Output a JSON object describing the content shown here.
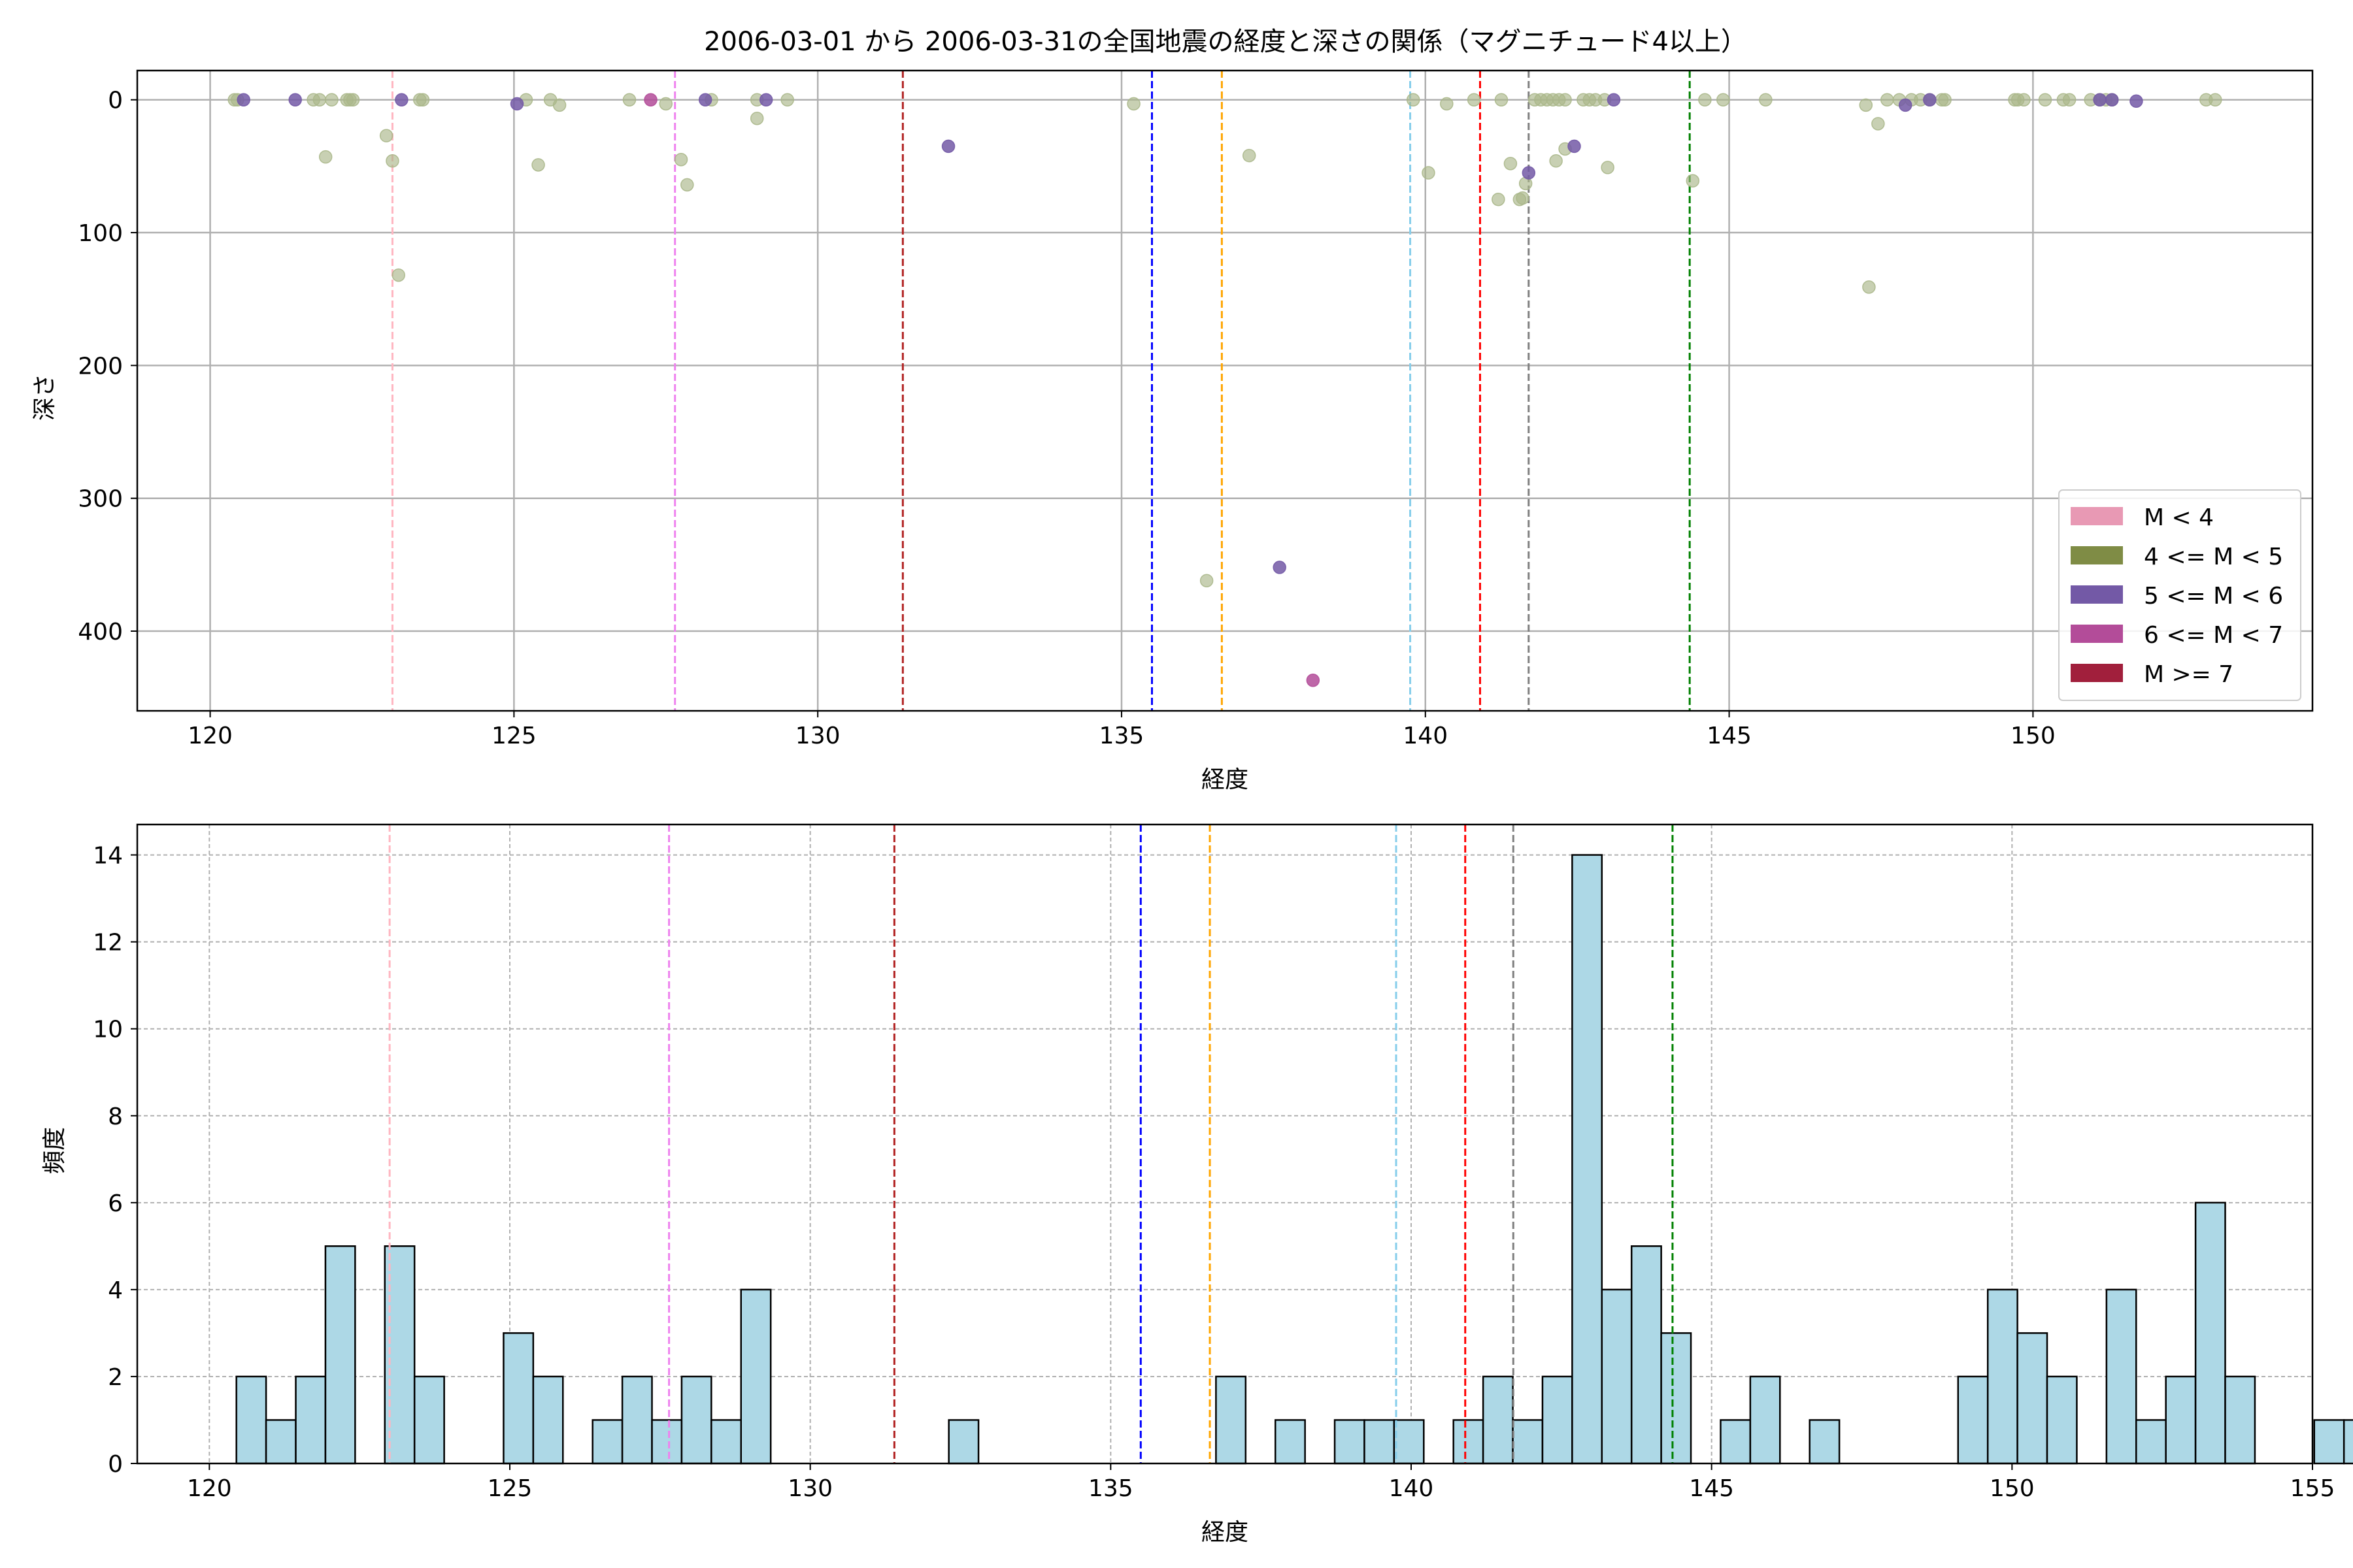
{
  "chart_data": [
    {
      "type": "scatter",
      "title": "2006-03-01 から 2006-03-31の全国地震の経度と深さの関係（マグニチュード4以上）",
      "xlabel": "経度",
      "ylabel": "深さ",
      "xlim": [
        118.8,
        154.6
      ],
      "ylim": [
        460,
        -22
      ],
      "y_inverted": true,
      "xticks": [
        120,
        125,
        130,
        135,
        140,
        145,
        150
      ],
      "yticks": [
        0,
        100,
        200,
        300,
        400
      ],
      "grid": true,
      "legend_position": "lower-right",
      "legend": [
        {
          "label": "M < 4",
          "color": "#e899b4"
        },
        {
          "label": "4 <= M < 5",
          "color": "#7f8c45"
        },
        {
          "label": "5 <= M < 6",
          "color": "#7359a6"
        },
        {
          "label": "6 <= M < 7",
          "color": "#b34c99"
        },
        {
          "label": "M >= 7",
          "color": "#a11f3c"
        }
      ],
      "vlines": [
        {
          "x": 123.0,
          "color": "#ffb6c1"
        },
        {
          "x": 127.65,
          "color": "#ee82ee"
        },
        {
          "x": 131.4,
          "color": "#b22222"
        },
        {
          "x": 135.5,
          "color": "#0000ff"
        },
        {
          "x": 136.65,
          "color": "#ffa500"
        },
        {
          "x": 139.75,
          "color": "#87ceeb"
        },
        {
          "x": 140.9,
          "color": "#ff0000"
        },
        {
          "x": 141.7,
          "color": "#808080"
        },
        {
          "x": 144.35,
          "color": "#008000"
        }
      ],
      "series": [
        {
          "class": "4 <= M < 5",
          "color": "#aab78a",
          "points": [
            [
              120.4,
              0
            ],
            [
              120.45,
              0
            ],
            [
              121.7,
              0
            ],
            [
              121.8,
              0
            ],
            [
              122.0,
              0
            ],
            [
              122.25,
              0
            ],
            [
              122.3,
              0
            ],
            [
              122.35,
              0
            ],
            [
              121.9,
              43
            ],
            [
              122.9,
              27
            ],
            [
              123.0,
              46
            ],
            [
              123.1,
              132
            ],
            [
              123.5,
              0
            ],
            [
              123.45,
              0
            ],
            [
              125.2,
              0
            ],
            [
              125.6,
              0
            ],
            [
              125.75,
              4
            ],
            [
              125.4,
              49
            ],
            [
              126.9,
              0
            ],
            [
              127.5,
              3
            ],
            [
              127.75,
              45
            ],
            [
              127.85,
              64
            ],
            [
              128.25,
              0
            ],
            [
              129.0,
              0
            ],
            [
              129.5,
              0
            ],
            [
              129.0,
              14
            ],
            [
              135.2,
              3
            ],
            [
              136.4,
              362
            ],
            [
              137.1,
              42
            ],
            [
              139.8,
              0
            ],
            [
              140.05,
              55
            ],
            [
              140.35,
              3
            ],
            [
              140.8,
              0
            ],
            [
              141.2,
              75
            ],
            [
              141.25,
              0
            ],
            [
              141.4,
              48
            ],
            [
              141.55,
              75
            ],
            [
              141.6,
              74
            ],
            [
              141.65,
              63
            ],
            [
              141.8,
              0
            ],
            [
              141.9,
              0
            ],
            [
              142.0,
              0
            ],
            [
              142.1,
              0
            ],
            [
              142.2,
              0
            ],
            [
              142.3,
              0
            ],
            [
              142.15,
              46
            ],
            [
              142.3,
              37
            ],
            [
              142.6,
              0
            ],
            [
              142.7,
              0
            ],
            [
              142.8,
              0
            ],
            [
              142.95,
              0
            ],
            [
              143.0,
              51
            ],
            [
              144.4,
              61
            ],
            [
              144.6,
              0
            ],
            [
              144.9,
              0
            ],
            [
              145.6,
              0
            ],
            [
              147.25,
              4
            ],
            [
              147.45,
              18
            ],
            [
              147.3,
              141
            ],
            [
              147.6,
              0
            ],
            [
              147.8,
              0
            ],
            [
              148.0,
              0
            ],
            [
              148.15,
              0
            ],
            [
              148.3,
              0
            ],
            [
              148.5,
              0
            ],
            [
              148.55,
              0
            ],
            [
              149.7,
              0
            ],
            [
              149.75,
              0
            ],
            [
              149.85,
              0
            ],
            [
              150.2,
              0
            ],
            [
              150.5,
              0
            ],
            [
              150.6,
              0
            ],
            [
              150.95,
              0
            ],
            [
              151.1,
              0
            ],
            [
              151.2,
              0
            ],
            [
              151.3,
              0
            ],
            [
              152.85,
              0
            ],
            [
              153.0,
              0
            ]
          ]
        },
        {
          "class": "5 <= M < 6",
          "color": "#7359a6",
          "points": [
            [
              120.55,
              0
            ],
            [
              121.4,
              0
            ],
            [
              123.15,
              0
            ],
            [
              125.05,
              3
            ],
            [
              128.15,
              0
            ],
            [
              129.15,
              0
            ],
            [
              132.15,
              35
            ],
            [
              137.6,
              352
            ],
            [
              141.7,
              55
            ],
            [
              142.45,
              35
            ],
            [
              143.1,
              0
            ],
            [
              147.9,
              4
            ],
            [
              148.3,
              0
            ],
            [
              151.1,
              0
            ],
            [
              151.3,
              0
            ],
            [
              151.7,
              1
            ]
          ]
        },
        {
          "class": "6 <= M < 7",
          "color": "#b34c99",
          "points": [
            [
              127.25,
              0
            ],
            [
              138.15,
              437
            ]
          ]
        }
      ]
    },
    {
      "type": "bar",
      "title": "",
      "xlabel": "経度",
      "ylabel": "頻度",
      "xlim": [
        118.8,
        155.0
      ],
      "ylim": [
        0,
        14.7
      ],
      "xticks": [
        120,
        125,
        130,
        135,
        140,
        145,
        150,
        155
      ],
      "yticks": [
        0,
        2,
        4,
        6,
        8,
        10,
        12,
        14
      ],
      "grid": true,
      "bar_color": "#add8e6",
      "bin_start": 120.45,
      "bin_width": 0.494,
      "counts": [
        2,
        1,
        2,
        5,
        0,
        5,
        2,
        0,
        0,
        3,
        2,
        0,
        1,
        2,
        1,
        2,
        1,
        4,
        0,
        0,
        0,
        0,
        0,
        0,
        1,
        0,
        0,
        0,
        0,
        0,
        0,
        0,
        0,
        2,
        0,
        1,
        0,
        1,
        1,
        1,
        0,
        1,
        2,
        1,
        2,
        14,
        4,
        5,
        3,
        0,
        1,
        2,
        0,
        1,
        0,
        0,
        0,
        0,
        2,
        4,
        3,
        2,
        0,
        4,
        1,
        2,
        6,
        2,
        0,
        0,
        1,
        1
      ],
      "vlines": [
        {
          "x": 123.0,
          "color": "#ffb6c1"
        },
        {
          "x": 127.65,
          "color": "#ee82ee"
        },
        {
          "x": 131.4,
          "color": "#b22222"
        },
        {
          "x": 135.5,
          "color": "#0000ff"
        },
        {
          "x": 136.65,
          "color": "#ffa500"
        },
        {
          "x": 139.75,
          "color": "#87ceeb"
        },
        {
          "x": 140.9,
          "color": "#ff0000"
        },
        {
          "x": 141.7,
          "color": "#808080"
        },
        {
          "x": 144.35,
          "color": "#008000"
        }
      ]
    }
  ]
}
